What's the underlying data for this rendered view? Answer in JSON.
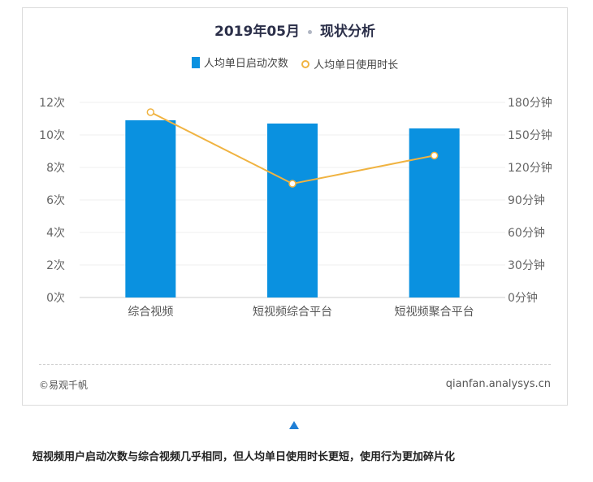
{
  "chart_data": {
    "type": "bar+line",
    "title": "2019年05月",
    "subtitle": "现状分析",
    "categories": [
      "综合视频",
      "短视频综合平台",
      "短视频聚合平台"
    ],
    "series": [
      {
        "name": "人均单日启动次数",
        "type": "bar",
        "axis": "left",
        "color": "#0a91e0",
        "values": [
          10.9,
          10.7,
          10.4
        ]
      },
      {
        "name": "人均单日使用时长",
        "type": "line",
        "axis": "right",
        "color": "#f0b341",
        "values": [
          171,
          105,
          131
        ]
      }
    ],
    "y_left": {
      "min": 0,
      "max": 12,
      "ticks": [
        "0次",
        "2次",
        "4次",
        "6次",
        "8次",
        "10次",
        "12次"
      ]
    },
    "y_right": {
      "min": 0,
      "max": 180,
      "ticks": [
        "0分钟",
        "30分钟",
        "60分钟",
        "90分钟",
        "120分钟",
        "150分钟",
        "180分钟"
      ]
    },
    "grid": true,
    "legend_position": "top"
  },
  "footer": {
    "source": "©易观千帆",
    "site": "qianfan.analysys.cn"
  },
  "caption": "短视频用户启动次数与综合视频几乎相同，但人均单日使用时长更短，使用行为更加碎片化"
}
